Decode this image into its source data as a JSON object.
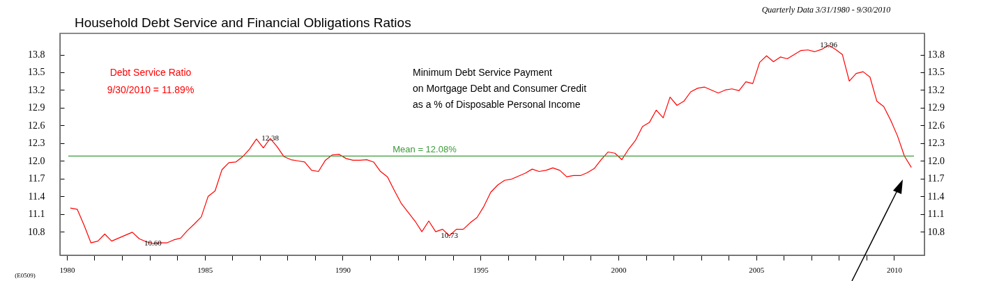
{
  "chart_data": {
    "type": "line",
    "title": "Household Debt Service and Financial Obligations Ratios",
    "x": [
      1980.125,
      1980.375,
      1980.625,
      1980.875,
      1981.125,
      1981.375,
      1981.625,
      1981.875,
      1982.125,
      1982.375,
      1982.625,
      1982.875,
      1983.125,
      1983.375,
      1983.625,
      1983.875,
      1984.125,
      1984.375,
      1984.625,
      1984.875,
      1985.125,
      1985.375,
      1985.625,
      1985.875,
      1986.125,
      1986.375,
      1986.625,
      1986.875,
      1987.125,
      1987.375,
      1987.625,
      1987.875,
      1988.125,
      1988.375,
      1988.625,
      1988.875,
      1989.125,
      1989.375,
      1989.625,
      1989.875,
      1990.125,
      1990.375,
      1990.625,
      1990.875,
      1991.125,
      1991.375,
      1991.625,
      1991.875,
      1992.125,
      1992.375,
      1992.625,
      1992.875,
      1993.125,
      1993.375,
      1993.625,
      1993.875,
      1994.125,
      1994.375,
      1994.625,
      1994.875,
      1995.125,
      1995.375,
      1995.625,
      1995.875,
      1996.125,
      1996.375,
      1996.625,
      1996.875,
      1997.125,
      1997.375,
      1997.625,
      1997.875,
      1998.125,
      1998.375,
      1998.625,
      1998.875,
      1999.125,
      1999.375,
      1999.625,
      1999.875,
      2000.125,
      2000.375,
      2000.625,
      2000.875,
      2001.125,
      2001.375,
      2001.625,
      2001.875,
      2002.125,
      2002.375,
      2002.625,
      2002.875,
      2003.125,
      2003.375,
      2003.625,
      2003.875,
      2004.125,
      2004.375,
      2004.625,
      2004.875,
      2005.125,
      2005.375,
      2005.625,
      2005.875,
      2006.125,
      2006.375,
      2006.625,
      2006.875,
      2007.125,
      2007.375,
      2007.625,
      2007.875,
      2008.125,
      2008.375,
      2008.625,
      2008.875,
      2009.125,
      2009.375,
      2009.625,
      2009.875,
      2010.125,
      2010.375,
      2010.625
    ],
    "series": [
      {
        "name": "Debt Service Ratio",
        "color": "#ff0000",
        "values": [
          11.2,
          11.18,
          10.91,
          10.61,
          10.64,
          10.76,
          10.64,
          10.69,
          10.74,
          10.79,
          10.68,
          10.63,
          10.6,
          10.61,
          10.61,
          10.66,
          10.69,
          10.82,
          10.93,
          11.05,
          11.4,
          11.49,
          11.85,
          11.97,
          11.98,
          12.07,
          12.2,
          12.37,
          12.22,
          12.38,
          12.24,
          12.07,
          12.02,
          12.0,
          11.98,
          11.84,
          11.82,
          12.01,
          12.1,
          12.11,
          12.04,
          12.01,
          12.01,
          12.02,
          11.98,
          11.82,
          11.73,
          11.5,
          11.28,
          11.13,
          10.98,
          10.8,
          10.98,
          10.8,
          10.84,
          10.73,
          10.84,
          10.84,
          10.95,
          11.04,
          11.23,
          11.47,
          11.59,
          11.67,
          11.69,
          11.74,
          11.79,
          11.86,
          11.82,
          11.84,
          11.88,
          11.84,
          11.73,
          11.75,
          11.75,
          11.8,
          11.87,
          12.02,
          12.15,
          12.13,
          12.02,
          12.2,
          12.35,
          12.58,
          12.65,
          12.86,
          12.73,
          13.08,
          12.94,
          13.01,
          13.17,
          13.23,
          13.25,
          13.2,
          13.15,
          13.2,
          13.22,
          13.19,
          13.34,
          13.31,
          13.67,
          13.78,
          13.68,
          13.76,
          13.73,
          13.8,
          13.87,
          13.88,
          13.85,
          13.89,
          13.96,
          13.89,
          13.8,
          13.35,
          13.48,
          13.51,
          13.42,
          13.01,
          12.92,
          12.69,
          12.42,
          12.08,
          11.89
        ]
      }
    ],
    "xlim": [
      1979.75,
      2011.1
    ],
    "xticks": [
      1980,
      {
        "value": 1981,
        "label": null
      },
      {
        "value": 1982,
        "label": null
      },
      {
        "value": 1983,
        "label": null
      },
      {
        "value": 1984,
        "label": null
      },
      1985,
      {
        "value": 1986,
        "label": null
      },
      {
        "value": 1987,
        "label": null
      },
      {
        "value": 1988,
        "label": null
      },
      {
        "value": 1989,
        "label": null
      },
      1990,
      {
        "value": 1991,
        "label": null
      },
      {
        "value": 1992,
        "label": null
      },
      {
        "value": 1993,
        "label": null
      },
      {
        "value": 1994,
        "label": null
      },
      1995,
      {
        "value": 1996,
        "label": null
      },
      {
        "value": 1997,
        "label": null
      },
      {
        "value": 1998,
        "label": null
      },
      {
        "value": 1999,
        "label": null
      },
      2000,
      {
        "value": 2001,
        "label": null
      },
      {
        "value": 2002,
        "label": null
      },
      {
        "value": 2003,
        "label": null
      },
      {
        "value": 2004,
        "label": null
      },
      2005,
      {
        "value": 2006,
        "label": null
      },
      {
        "value": 2007,
        "label": null
      },
      {
        "value": 2008,
        "label": null
      },
      {
        "value": 2009,
        "label": null
      },
      2010
    ],
    "ylim": [
      10.4,
      14.16
    ],
    "yticks": [
      10.8,
      11.1,
      11.4,
      11.7,
      {
        "value": 12,
        "label": "12.0"
      },
      12.3,
      12.6,
      12.9,
      13.2,
      13.5,
      13.8
    ],
    "y2lim": [
      10.4,
      14.16
    ],
    "y2ticks": [
      10.8,
      11.1,
      11.4,
      11.7,
      {
        "value": 12,
        "label": "12.0"
      },
      12.3,
      12.6,
      12.9,
      13.2,
      13.5,
      13.8
    ],
    "ref_lines": [
      {
        "axis": "y",
        "value": 12.08,
        "label": "Mean = 12.08%",
        "color": "#3a9a3a"
      }
    ],
    "annotations": [
      "Quarterly Data 3/31/1980 - 9/30/2010",
      "9/30/2010 = 11.89%",
      "Minimum Debt Service Payment\non Mortgage Debt and Consumer Credit\nas a % of Disposable Personal Income",
      "(E0509)",
      {
        "text": "12.38",
        "x": 1987.375,
        "y": 12.38
      },
      {
        "text": "10.60",
        "x": 1983.125,
        "y": 10.6
      },
      {
        "text": "10.73",
        "x": 1993.875,
        "y": 10.73
      },
      {
        "text": "13.96",
        "x": 2007.625,
        "y": 13.96
      }
    ],
    "legend": "top left",
    "grid": false
  }
}
